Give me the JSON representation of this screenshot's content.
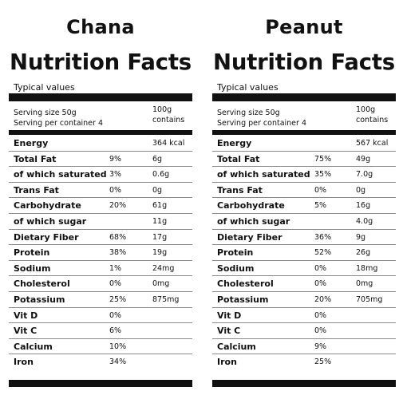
{
  "panels": [
    {
      "food": "Chana",
      "heading": "Nutrition Facts",
      "typical": "Typical values",
      "serving_size": "Serving size 50g",
      "serving_per_container": "Serving per container 4",
      "column_header_1": "100g",
      "column_header_2": "contains",
      "rows": [
        {
          "name": "Energy",
          "pct": "",
          "amount": "364 kcal"
        },
        {
          "name": "Total Fat",
          "pct": "9%",
          "amount": "6g"
        },
        {
          "name": "of which saturated",
          "pct": "3%",
          "amount": "0.6g"
        },
        {
          "name": "Trans Fat",
          "pct": "0%",
          "amount": "0g"
        },
        {
          "name": "Carbohydrate",
          "pct": "20%",
          "amount": "61g"
        },
        {
          "name": "of which sugar",
          "pct": "",
          "amount": "11g"
        },
        {
          "name": "Dietary Fiber",
          "pct": "68%",
          "amount": "17g"
        },
        {
          "name": "Protein",
          "pct": "38%",
          "amount": "19g"
        },
        {
          "name": "Sodium",
          "pct": "1%",
          "amount": "24mg"
        },
        {
          "name": "Cholesterol",
          "pct": "0%",
          "amount": "0mg"
        },
        {
          "name": "Potassium",
          "pct": "25%",
          "amount": "875mg"
        },
        {
          "name": "Vit D",
          "pct": "0%",
          "amount": ""
        },
        {
          "name": "Vit C",
          "pct": "6%",
          "amount": ""
        },
        {
          "name": "Calcium",
          "pct": "10%",
          "amount": ""
        },
        {
          "name": "Iron",
          "pct": "34%",
          "amount": ""
        }
      ]
    },
    {
      "food": "Peanut",
      "heading": "Nutrition Facts",
      "typical": "Typical values",
      "serving_size": "Serving size 50g",
      "serving_per_container": "Serving per container 4",
      "column_header_1": "100g",
      "column_header_2": "contains",
      "rows": [
        {
          "name": "Energy",
          "pct": "",
          "amount": "567 kcal"
        },
        {
          "name": "Total Fat",
          "pct": "75%",
          "amount": "49g"
        },
        {
          "name": "of which saturated",
          "pct": "35%",
          "amount": "7.0g"
        },
        {
          "name": "Trans Fat",
          "pct": "0%",
          "amount": "0g"
        },
        {
          "name": "Carbohydrate",
          "pct": "5%",
          "amount": "16g"
        },
        {
          "name": "of which sugar",
          "pct": "",
          "amount": "4.0g"
        },
        {
          "name": "Dietary Fiber",
          "pct": "36%",
          "amount": "9g"
        },
        {
          "name": "Protein",
          "pct": "52%",
          "amount": "26g"
        },
        {
          "name": "Sodium",
          "pct": "0%",
          "amount": "18mg"
        },
        {
          "name": "Cholesterol",
          "pct": "0%",
          "amount": "0mg"
        },
        {
          "name": "Potassium",
          "pct": "20%",
          "amount": "705mg"
        },
        {
          "name": "Vit D",
          "pct": "0%",
          "amount": ""
        },
        {
          "name": "Vit C",
          "pct": "0%",
          "amount": ""
        },
        {
          "name": "Calcium",
          "pct": "9%",
          "amount": ""
        },
        {
          "name": "Iron",
          "pct": "25%",
          "amount": ""
        }
      ]
    }
  ]
}
